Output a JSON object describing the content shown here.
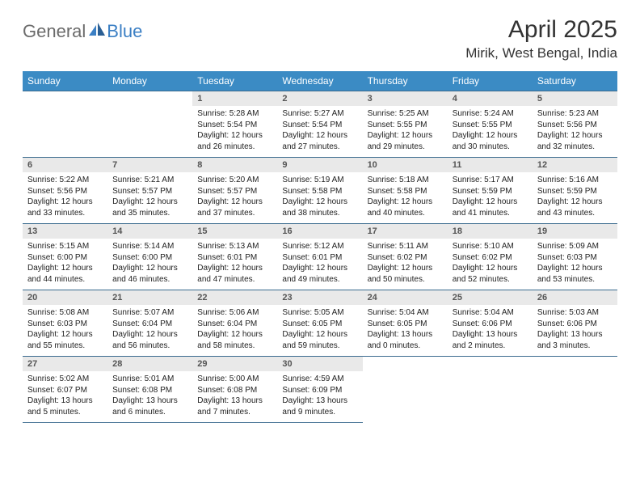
{
  "brand": {
    "text1": "General",
    "text2": "Blue"
  },
  "title": "April 2025",
  "location": "Mirik, West Bengal, India",
  "colors": {
    "header_bg": "#3b8bc4",
    "header_fg": "#ffffff",
    "daynum_bg": "#e9e9e9",
    "daynum_fg": "#555555",
    "row_border": "#3b6b8f",
    "logo_grey": "#6b6b6b",
    "logo_blue": "#3b7fc4"
  },
  "dow": [
    "Sunday",
    "Monday",
    "Tuesday",
    "Wednesday",
    "Thursday",
    "Friday",
    "Saturday"
  ],
  "first_weekday": 2,
  "last_day": 30,
  "labels": {
    "sunrise": "Sunrise:",
    "sunset": "Sunset:",
    "daylight": "Daylight:"
  },
  "days": {
    "1": {
      "sunrise": "5:28 AM",
      "sunset": "5:54 PM",
      "daylight1": "12 hours",
      "daylight2": "and 26 minutes."
    },
    "2": {
      "sunrise": "5:27 AM",
      "sunset": "5:54 PM",
      "daylight1": "12 hours",
      "daylight2": "and 27 minutes."
    },
    "3": {
      "sunrise": "5:25 AM",
      "sunset": "5:55 PM",
      "daylight1": "12 hours",
      "daylight2": "and 29 minutes."
    },
    "4": {
      "sunrise": "5:24 AM",
      "sunset": "5:55 PM",
      "daylight1": "12 hours",
      "daylight2": "and 30 minutes."
    },
    "5": {
      "sunrise": "5:23 AM",
      "sunset": "5:56 PM",
      "daylight1": "12 hours",
      "daylight2": "and 32 minutes."
    },
    "6": {
      "sunrise": "5:22 AM",
      "sunset": "5:56 PM",
      "daylight1": "12 hours",
      "daylight2": "and 33 minutes."
    },
    "7": {
      "sunrise": "5:21 AM",
      "sunset": "5:57 PM",
      "daylight1": "12 hours",
      "daylight2": "and 35 minutes."
    },
    "8": {
      "sunrise": "5:20 AM",
      "sunset": "5:57 PM",
      "daylight1": "12 hours",
      "daylight2": "and 37 minutes."
    },
    "9": {
      "sunrise": "5:19 AM",
      "sunset": "5:58 PM",
      "daylight1": "12 hours",
      "daylight2": "and 38 minutes."
    },
    "10": {
      "sunrise": "5:18 AM",
      "sunset": "5:58 PM",
      "daylight1": "12 hours",
      "daylight2": "and 40 minutes."
    },
    "11": {
      "sunrise": "5:17 AM",
      "sunset": "5:59 PM",
      "daylight1": "12 hours",
      "daylight2": "and 41 minutes."
    },
    "12": {
      "sunrise": "5:16 AM",
      "sunset": "5:59 PM",
      "daylight1": "12 hours",
      "daylight2": "and 43 minutes."
    },
    "13": {
      "sunrise": "5:15 AM",
      "sunset": "6:00 PM",
      "daylight1": "12 hours",
      "daylight2": "and 44 minutes."
    },
    "14": {
      "sunrise": "5:14 AM",
      "sunset": "6:00 PM",
      "daylight1": "12 hours",
      "daylight2": "and 46 minutes."
    },
    "15": {
      "sunrise": "5:13 AM",
      "sunset": "6:01 PM",
      "daylight1": "12 hours",
      "daylight2": "and 47 minutes."
    },
    "16": {
      "sunrise": "5:12 AM",
      "sunset": "6:01 PM",
      "daylight1": "12 hours",
      "daylight2": "and 49 minutes."
    },
    "17": {
      "sunrise": "5:11 AM",
      "sunset": "6:02 PM",
      "daylight1": "12 hours",
      "daylight2": "and 50 minutes."
    },
    "18": {
      "sunrise": "5:10 AM",
      "sunset": "6:02 PM",
      "daylight1": "12 hours",
      "daylight2": "and 52 minutes."
    },
    "19": {
      "sunrise": "5:09 AM",
      "sunset": "6:03 PM",
      "daylight1": "12 hours",
      "daylight2": "and 53 minutes."
    },
    "20": {
      "sunrise": "5:08 AM",
      "sunset": "6:03 PM",
      "daylight1": "12 hours",
      "daylight2": "and 55 minutes."
    },
    "21": {
      "sunrise": "5:07 AM",
      "sunset": "6:04 PM",
      "daylight1": "12 hours",
      "daylight2": "and 56 minutes."
    },
    "22": {
      "sunrise": "5:06 AM",
      "sunset": "6:04 PM",
      "daylight1": "12 hours",
      "daylight2": "and 58 minutes."
    },
    "23": {
      "sunrise": "5:05 AM",
      "sunset": "6:05 PM",
      "daylight1": "12 hours",
      "daylight2": "and 59 minutes."
    },
    "24": {
      "sunrise": "5:04 AM",
      "sunset": "6:05 PM",
      "daylight1": "13 hours",
      "daylight2": "and 0 minutes."
    },
    "25": {
      "sunrise": "5:04 AM",
      "sunset": "6:06 PM",
      "daylight1": "13 hours",
      "daylight2": "and 2 minutes."
    },
    "26": {
      "sunrise": "5:03 AM",
      "sunset": "6:06 PM",
      "daylight1": "13 hours",
      "daylight2": "and 3 minutes."
    },
    "27": {
      "sunrise": "5:02 AM",
      "sunset": "6:07 PM",
      "daylight1": "13 hours",
      "daylight2": "and 5 minutes."
    },
    "28": {
      "sunrise": "5:01 AM",
      "sunset": "6:08 PM",
      "daylight1": "13 hours",
      "daylight2": "and 6 minutes."
    },
    "29": {
      "sunrise": "5:00 AM",
      "sunset": "6:08 PM",
      "daylight1": "13 hours",
      "daylight2": "and 7 minutes."
    },
    "30": {
      "sunrise": "4:59 AM",
      "sunset": "6:09 PM",
      "daylight1": "13 hours",
      "daylight2": "and 9 minutes."
    }
  }
}
